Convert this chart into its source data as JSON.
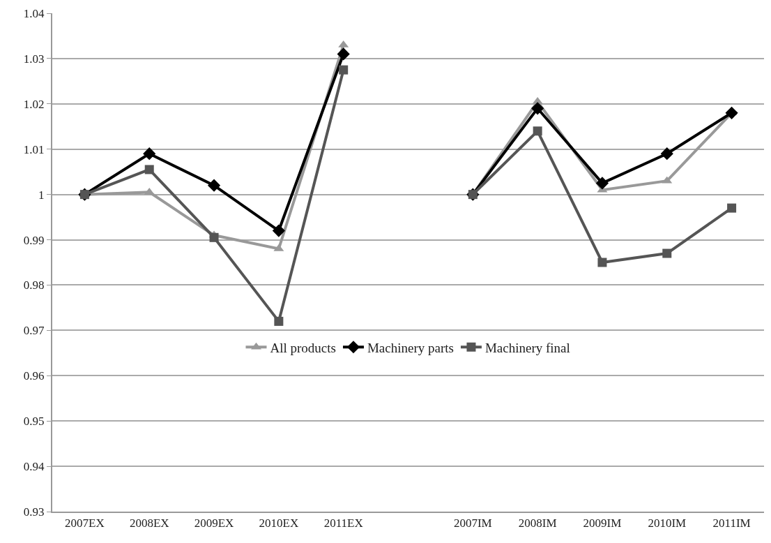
{
  "chart_data": {
    "type": "line",
    "categories": [
      "2007EX",
      "2008EX",
      "2009EX",
      "2010EX",
      "2011EX",
      null,
      "2007IM",
      "2008IM",
      "2009IM",
      "2010IM",
      "2011IM"
    ],
    "series": [
      {
        "name": "All products",
        "color": "#999999",
        "marker": "triangle",
        "values": [
          1.0,
          1.0005,
          0.991,
          0.988,
          1.033,
          null,
          1.0,
          1.0205,
          1.001,
          1.003,
          1.018
        ]
      },
      {
        "name": "Machinery parts",
        "color": "#000000",
        "marker": "diamond",
        "values": [
          1.0,
          1.009,
          1.002,
          0.992,
          1.031,
          null,
          1.0,
          1.019,
          1.0025,
          1.009,
          1.018
        ]
      },
      {
        "name": "Machinery final",
        "color": "#555555",
        "marker": "square",
        "values": [
          1.0,
          1.0055,
          0.9905,
          0.972,
          1.0275,
          null,
          1.0,
          1.014,
          0.985,
          0.987,
          0.997
        ]
      }
    ],
    "ylim": [
      0.93,
      1.04
    ],
    "yticks": [
      0.93,
      0.94,
      0.95,
      0.96,
      0.97,
      0.98,
      0.99,
      1,
      1.01,
      1.02,
      1.03,
      1.04
    ],
    "grid": "y",
    "legend": "bottom",
    "line_style": "solid"
  }
}
